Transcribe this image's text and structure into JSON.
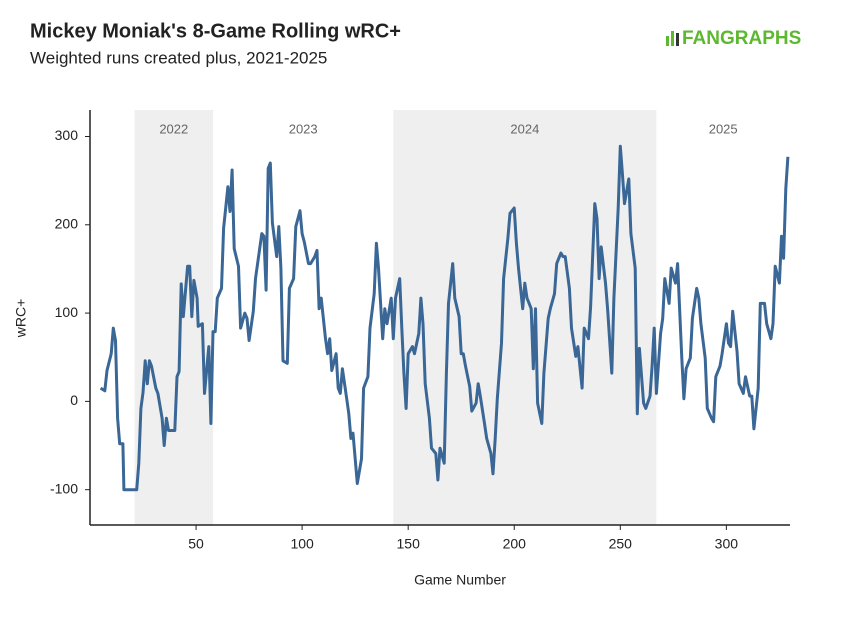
{
  "chart_data": {
    "type": "line",
    "title": "Mickey Moniak's 8-Game Rolling wRC+",
    "subtitle": "Weighted runs created plus, 2021-2025",
    "brand": "FANGRAPHS",
    "x_label": "Game Number",
    "y_label": "wRC+",
    "color": "#3a6796",
    "band_color": "#efefef",
    "xlim": [
      0,
      330
    ],
    "xticks": [
      50,
      100,
      150,
      200,
      250,
      300
    ],
    "ylim": [
      -140,
      330
    ],
    "yticks": [
      -100,
      0,
      100,
      200,
      300
    ],
    "seasons": [
      {
        "label": "2022",
        "start": 21,
        "end": 58,
        "shaded": true
      },
      {
        "label": "2023",
        "start": 58,
        "end": 143,
        "shaded": false
      },
      {
        "label": "2024",
        "start": 143,
        "end": 267,
        "shaded": true
      },
      {
        "label": "2025",
        "start": 267,
        "end": 330,
        "shaded": false
      }
    ],
    "x": [
      5,
      7,
      8,
      10,
      11,
      12,
      13,
      14,
      15.5,
      16,
      22,
      23,
      24,
      25,
      26,
      27,
      28,
      29,
      31,
      32,
      34,
      35,
      36,
      37,
      40,
      41,
      42,
      43,
      44,
      46,
      47,
      48,
      49,
      50.5,
      51,
      53,
      54,
      56,
      57,
      58,
      59,
      60,
      62,
      63,
      65,
      66,
      67,
      68,
      70,
      71,
      73,
      74,
      75,
      77,
      78,
      80,
      81,
      82,
      83,
      84,
      85,
      86,
      88,
      89,
      90,
      91,
      93,
      94,
      96,
      97,
      99,
      100,
      101,
      103,
      104,
      106,
      107,
      108,
      109,
      111,
      112,
      113,
      114,
      116,
      117,
      118,
      119,
      121,
      122,
      123,
      124,
      126,
      128,
      129,
      131,
      132,
      134,
      135,
      136,
      138,
      139,
      140,
      142,
      143,
      144,
      146,
      147,
      148,
      149,
      150,
      152,
      153,
      155,
      156,
      157,
      158,
      160,
      161,
      163,
      164,
      165,
      167,
      168,
      169,
      171,
      172,
      174,
      175,
      176,
      177,
      179,
      180,
      182,
      183,
      184,
      186,
      187,
      189,
      190,
      191,
      192,
      194,
      195,
      197,
      198,
      200,
      201,
      202,
      204,
      205,
      206,
      208,
      209,
      210,
      211,
      213,
      214,
      216,
      217,
      219,
      220,
      222,
      223,
      224,
      226,
      227,
      229,
      230,
      232,
      233,
      235,
      236,
      238,
      239,
      240,
      241,
      243,
      244,
      246,
      247,
      249,
      250,
      251,
      252,
      254,
      255,
      257,
      258,
      259,
      261,
      262,
      264,
      265,
      266,
      267,
      269,
      270,
      271,
      273,
      274,
      276,
      277,
      279,
      280,
      281,
      283,
      284,
      286,
      287,
      288,
      290,
      291,
      293,
      294,
      295,
      297,
      298,
      300,
      301,
      302,
      303,
      305,
      306,
      308,
      309,
      311,
      312,
      313,
      315,
      316,
      318,
      319,
      321,
      322,
      323,
      325,
      326,
      327,
      328,
      329
    ],
    "values": [
      15,
      12,
      35,
      54,
      83,
      69,
      -19,
      -48,
      -48,
      -100,
      -100,
      -70,
      -8,
      10,
      46,
      20,
      46,
      40,
      15,
      9,
      -19,
      -50,
      -19,
      -33,
      -33,
      28,
      34,
      133,
      96,
      153,
      153,
      96,
      137,
      117,
      85,
      88,
      9,
      62,
      -25,
      79,
      79,
      117,
      128,
      196,
      243,
      215,
      262,
      173,
      153,
      83,
      100,
      94,
      69,
      102,
      139,
      173,
      190,
      187,
      126,
      264,
      270,
      202,
      164,
      198,
      151,
      46,
      43,
      128,
      139,
      198,
      216,
      190,
      181,
      156,
      156,
      164,
      171,
      105,
      117,
      71,
      54,
      71,
      35,
      54,
      15,
      9,
      37,
      3,
      -14,
      -42,
      -36,
      -93,
      -65,
      15,
      28,
      83,
      122,
      179,
      151,
      71,
      105,
      88,
      117,
      71,
      117,
      139,
      83,
      32,
      -8,
      54,
      62,
      54,
      77,
      117,
      88,
      20,
      -19,
      -53,
      -59,
      -89,
      -53,
      -70,
      32,
      111,
      156,
      117,
      96,
      54,
      54,
      40,
      17,
      -11,
      -2,
      20,
      6,
      -25,
      -42,
      -59,
      -82,
      -42,
      3,
      66,
      139,
      185,
      213,
      219,
      179,
      151,
      105,
      134,
      117,
      105,
      37,
      105,
      -2,
      -25,
      32,
      94,
      105,
      122,
      156,
      168,
      164,
      164,
      128,
      83,
      51,
      62,
      15,
      83,
      71,
      107,
      224,
      207,
      139,
      175,
      134,
      105,
      32,
      117,
      219,
      289,
      258,
      224,
      252,
      190,
      151,
      -14,
      60,
      -2,
      -8,
      6,
      40,
      83,
      9,
      77,
      94,
      139,
      111,
      151,
      134,
      156,
      49,
      3,
      37,
      49,
      94,
      128,
      117,
      88,
      49,
      -8,
      -19,
      -23,
      28,
      40,
      54,
      88,
      66,
      62,
      102,
      57,
      20,
      9,
      28,
      6,
      6,
      -31,
      15,
      111,
      111,
      88,
      71,
      88,
      153,
      134,
      187,
      162,
      241,
      277
    ]
  }
}
